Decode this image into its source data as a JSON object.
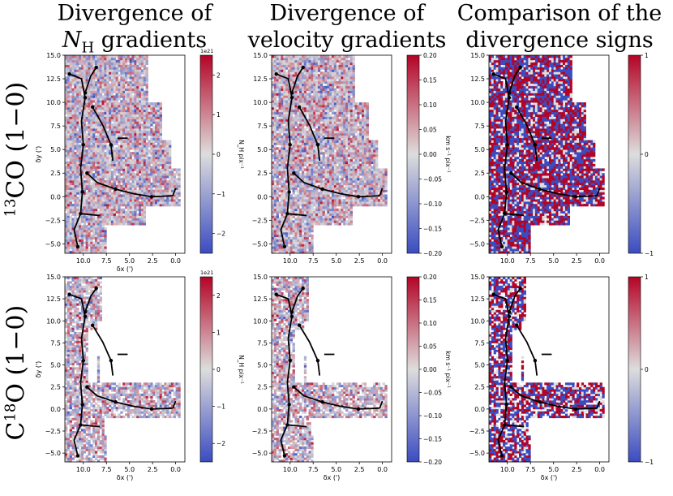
{
  "column_titles": [
    {
      "line1": "Divergence of",
      "line2": "N_H gradients"
    },
    {
      "line1": "Divergence of",
      "line2": "velocity gradients"
    },
    {
      "line1": "Comparison of the",
      "line2": "divergence signs"
    }
  ],
  "row_labels": [
    "13CO (1−0)",
    "C18O (1−0)"
  ],
  "colors": {
    "negative": "#3b4cc0",
    "zero": "#dddddd",
    "positive": "#b40426",
    "spine": "#000000"
  },
  "chart_data": [
    {
      "type": "heatmap",
      "name": "13CO-nh-divergence",
      "row": "13CO (1−0)",
      "column": "Divergence of N_H gradients",
      "xlabel": "δx (')",
      "ylabel": "δy (')",
      "xlim": [
        12,
        -1
      ],
      "ylim": [
        -6,
        15
      ],
      "x_axis_inverted": true,
      "xticks": [
        "10.0",
        "7.5",
        "5.0",
        "2.5",
        "0.0"
      ],
      "yticks": [
        "15.0",
        "12.5",
        "10.0",
        "7.5",
        "5.0",
        "2.5",
        "0.0",
        "−2.5",
        "−5.0"
      ],
      "colorbar": {
        "label": "N_H pix⁻¹",
        "range": [
          -2.5,
          2.5
        ],
        "scale": "1e21",
        "ticks": [
          "2",
          "1",
          "0",
          "−1",
          "−2"
        ],
        "cmap": "coolwarm"
      }
    },
    {
      "type": "heatmap",
      "name": "13CO-velocity-divergence",
      "row": "13CO (1−0)",
      "column": "Divergence of velocity gradients",
      "xlabel": "",
      "ylabel": "",
      "xlim": [
        12,
        -1
      ],
      "ylim": [
        -6,
        15
      ],
      "x_axis_inverted": true,
      "xticks": [
        "10.0",
        "7.5",
        "5.0",
        "2.5",
        "0.0"
      ],
      "yticks": [
        "15.0",
        "12.5",
        "10.0",
        "7.5",
        "5.0",
        "2.5",
        "0.0",
        "−2.5",
        "−5.0"
      ],
      "colorbar": {
        "label": "km s⁻¹ pix⁻¹",
        "range": [
          -0.2,
          0.2
        ],
        "ticks": [
          "0.20",
          "0.15",
          "0.10",
          "0.05",
          "0.00",
          "−0.05",
          "−0.10",
          "−0.15",
          "−0.20"
        ],
        "cmap": "coolwarm"
      }
    },
    {
      "type": "heatmap",
      "name": "13CO-sign-comparison",
      "row": "13CO (1−0)",
      "column": "Comparison of the divergence signs",
      "xlabel": "",
      "ylabel": "",
      "xlim": [
        12,
        -1
      ],
      "ylim": [
        -6,
        15
      ],
      "x_axis_inverted": true,
      "xticks": [
        "10.0",
        "7.5",
        "5.0",
        "2.5",
        "0.0"
      ],
      "yticks": [
        "15.0",
        "12.5",
        "10.0",
        "7.5",
        "5.0",
        "2.5",
        "0.0",
        "−2.5",
        "−5.0"
      ],
      "colorbar": {
        "label": "",
        "range": [
          -1,
          1
        ],
        "ticks": [
          "1",
          "0",
          "−1"
        ],
        "cmap": "coolwarm"
      }
    },
    {
      "type": "heatmap",
      "name": "C18O-nh-divergence",
      "row": "C18O (1−0)",
      "column": "Divergence of N_H gradients",
      "xlabel": "δx (')",
      "ylabel": "δy (')",
      "xlim": [
        12,
        -1
      ],
      "ylim": [
        -6,
        15
      ],
      "x_axis_inverted": true,
      "xticks": [
        "10.0",
        "7.5",
        "5.0",
        "2.5",
        "0.0"
      ],
      "yticks": [
        "15.0",
        "12.5",
        "10.0",
        "7.5",
        "5.0",
        "2.5",
        "0.0",
        "−2.5",
        "−5.0"
      ],
      "colorbar": {
        "label": "N_H pix⁻¹",
        "range": [
          -2.5,
          2.5
        ],
        "scale": "1e21",
        "ticks": [
          "2",
          "1",
          "0",
          "−1",
          "−2"
        ],
        "cmap": "coolwarm"
      }
    },
    {
      "type": "heatmap",
      "name": "C18O-velocity-divergence",
      "row": "C18O (1−0)",
      "column": "Divergence of velocity gradients",
      "xlabel": "δx (')",
      "ylabel": "",
      "xlim": [
        12,
        -1
      ],
      "ylim": [
        -6,
        15
      ],
      "x_axis_inverted": true,
      "xticks": [
        "10.0",
        "7.5",
        "5.0",
        "2.5",
        "0.0"
      ],
      "yticks": [
        "15.0",
        "12.5",
        "10.0",
        "7.5",
        "5.0",
        "2.5",
        "0.0",
        "−2.5",
        "−5.0"
      ],
      "colorbar": {
        "label": "km s⁻¹ pix⁻¹",
        "range": [
          -0.2,
          0.2
        ],
        "ticks": [
          "0.20",
          "0.15",
          "0.10",
          "0.05",
          "0.00",
          "−0.05",
          "−0.10",
          "−0.15",
          "−0.20"
        ],
        "cmap": "coolwarm"
      }
    },
    {
      "type": "heatmap",
      "name": "C18O-sign-comparison",
      "row": "C18O (1−0)",
      "column": "Comparison of the divergence signs",
      "xlabel": "δx (')",
      "ylabel": "",
      "xlim": [
        12,
        -1
      ],
      "ylim": [
        -6,
        15
      ],
      "x_axis_inverted": true,
      "xticks": [
        "10.0",
        "7.5",
        "5.0",
        "2.5",
        "0.0"
      ],
      "yticks": [
        "15.0",
        "12.5",
        "10.0",
        "7.5",
        "5.0",
        "2.5",
        "0.0",
        "−2.5",
        "−5.0"
      ],
      "colorbar": {
        "label": "",
        "range": [
          -1,
          1
        ],
        "ticks": [
          "1",
          "0",
          "−1"
        ],
        "cmap": "coolwarm"
      }
    }
  ]
}
